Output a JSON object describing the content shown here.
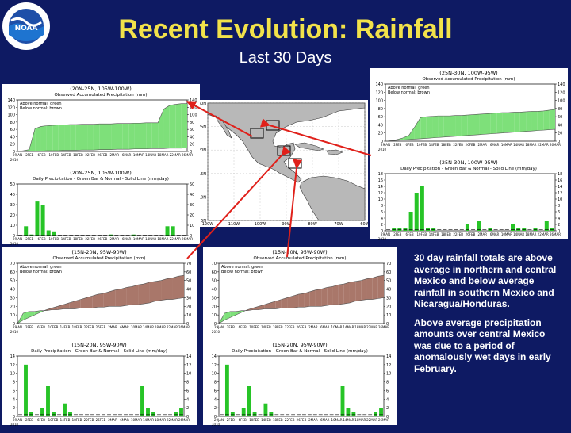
{
  "header": {
    "title": "Recent Evolution: Rainfall",
    "subtitle": "Last 30 Days",
    "logo_text": "NOAA"
  },
  "colors": {
    "background": "#0e1a63",
    "title": "#f2e24a",
    "above": "#7ee07a",
    "below": "#a9776a",
    "bar": "#27c427",
    "arrow": "#e0201a"
  },
  "notes": [
    "30 day rainfall totals are above average in northern and central Mexico and below average rainfall in southern Mexico and Nicaragua/Honduras.",
    "Above average precipitation amounts over central Mexico was due to a period of anomalously wet days in early February."
  ],
  "date_labels": [
    "29JAN",
    "2FEB",
    "6FEB",
    "10FEB",
    "14FEB",
    "18FEB",
    "22FEB",
    "26FEB",
    "2MAR",
    "6MAR",
    "10MAR",
    "14MAR",
    "18MAR",
    "22MAR",
    "26MAR"
  ],
  "year_label": "2010",
  "map": {
    "lon_labels": [
      "120W",
      "110W",
      "100W",
      "90W",
      "80W",
      "70W",
      "60W"
    ],
    "lat_labels": [
      "30N",
      "25N",
      "20N",
      "15N",
      "10N",
      "5N"
    ]
  },
  "chart_data": [
    {
      "type": "area",
      "region": "(20N-25N, 105W-100W)",
      "title": "Observed Accumulated Precipitation (mm)",
      "legend": [
        "Above normal: green",
        "Below normal: brown"
      ],
      "ylim": [
        0,
        140
      ],
      "yticks": [
        0,
        20,
        40,
        60,
        80,
        100,
        120,
        140
      ],
      "observed": [
        0,
        2,
        5,
        62,
        68,
        70,
        71,
        72,
        72,
        73,
        73,
        74,
        74,
        74,
        75,
        75,
        75,
        76,
        76,
        76,
        77,
        77,
        78,
        78,
        78,
        115,
        125,
        128,
        130,
        130
      ],
      "normal": [
        0,
        0,
        1,
        1,
        1,
        2,
        2,
        2,
        3,
        3,
        3,
        4,
        4,
        4,
        5,
        5,
        5,
        6,
        6,
        6,
        7,
        7,
        7,
        8,
        8,
        8,
        9,
        9,
        9,
        10
      ]
    },
    {
      "type": "bar",
      "region": "(20N-25N, 105W-100W)",
      "title": "Daily Precipitation - Green Bar & Normal - Solid Line (mm/day)",
      "ylim": [
        0,
        50
      ],
      "yticks": [
        0,
        10,
        20,
        30,
        40,
        50
      ],
      "values": [
        0,
        9,
        1,
        33,
        30,
        5,
        4,
        0,
        0,
        0,
        0,
        0,
        0,
        0,
        0,
        0,
        1,
        0,
        0,
        0,
        1,
        0,
        0,
        0,
        0,
        0,
        9,
        9,
        0,
        0
      ]
    },
    {
      "type": "area",
      "region": "(25N-30N, 100W-95W)",
      "title": "Observed Accumulated Precipitation (mm)",
      "legend": [
        "Above normal: green",
        "Below normal: brown"
      ],
      "ylim": [
        0,
        140
      ],
      "yticks": [
        0,
        20,
        40,
        60,
        80,
        100,
        120,
        140
      ],
      "observed": [
        0,
        1,
        4,
        8,
        14,
        35,
        58,
        60,
        61,
        62,
        62,
        62,
        63,
        63,
        64,
        65,
        66,
        67,
        68,
        69,
        70,
        70,
        71,
        71,
        72,
        73,
        73,
        74,
        76,
        78
      ],
      "normal": [
        0,
        1,
        2,
        3,
        4,
        5,
        6,
        7,
        8,
        9,
        10,
        11,
        12,
        13,
        14,
        15,
        16,
        17,
        18,
        19,
        20,
        21,
        22,
        23,
        24,
        25,
        26,
        27,
        28,
        29
      ]
    },
    {
      "type": "bar",
      "region": "(25N-30N, 100W-95W)",
      "title": "Daily Precipitation - Green Bar & Normal - Solid Line (mm/day)",
      "ylim": [
        0,
        18
      ],
      "yticks": [
        0,
        2,
        4,
        6,
        8,
        10,
        12,
        14,
        16,
        18
      ],
      "values": [
        0,
        1,
        1,
        1,
        6,
        12,
        14,
        1,
        1,
        0,
        0,
        0,
        0,
        0,
        2,
        0,
        3,
        0,
        1,
        0,
        0,
        0,
        2,
        1,
        1,
        0,
        1,
        0,
        3,
        1
      ]
    },
    {
      "type": "area",
      "region": "(15N-20N, 95W-90W)",
      "title": "Observed Accumulated Precipitation (mm)",
      "legend": [
        "Above normal: green",
        "Below normal: brown"
      ],
      "ylim": [
        0,
        70
      ],
      "yticks": [
        0,
        10,
        20,
        30,
        40,
        50,
        60,
        70
      ],
      "observed": [
        0,
        12,
        14,
        14,
        15,
        15,
        16,
        16,
        17,
        17,
        17,
        18,
        18,
        18,
        19,
        19,
        20,
        20,
        20,
        21,
        22,
        22,
        23,
        24,
        26,
        27,
        28,
        28,
        29,
        30
      ],
      "normal": [
        0,
        4,
        7,
        10,
        13,
        16,
        18,
        20,
        22,
        24,
        26,
        28,
        30,
        32,
        34,
        35,
        37,
        39,
        40,
        42,
        43,
        45,
        46,
        48,
        49,
        50,
        52,
        53,
        55,
        56
      ]
    },
    {
      "type": "bar",
      "region": "(15N-20N, 95W-90W)",
      "title": "Daily Precipitation - Green Bar & Normal - Solid Line (mm/day)",
      "ylim": [
        0,
        14
      ],
      "yticks": [
        0,
        2,
        4,
        6,
        8,
        10,
        12,
        14
      ],
      "values": [
        0,
        12,
        1,
        0,
        2,
        7,
        1,
        0,
        3,
        1,
        0,
        0,
        0,
        0,
        0,
        0,
        0,
        0,
        0,
        0,
        0,
        0,
        7,
        2,
        1,
        0,
        0,
        0,
        1,
        2
      ]
    },
    {
      "type": "area",
      "region": "(15N-20N, 95W-90W)",
      "title": "Observed Accumulated Precipitation (mm)",
      "legend": [
        "Above normal: green",
        "Below normal: brown"
      ],
      "ylim": [
        0,
        70
      ],
      "yticks": [
        0,
        10,
        20,
        30,
        40,
        50,
        60,
        70
      ],
      "observed": [
        0,
        12,
        14,
        14,
        15,
        15,
        16,
        16,
        17,
        17,
        17,
        18,
        18,
        18,
        19,
        19,
        20,
        20,
        20,
        21,
        22,
        22,
        23,
        24,
        26,
        27,
        28,
        28,
        29,
        30
      ],
      "normal": [
        0,
        4,
        7,
        10,
        13,
        16,
        18,
        20,
        22,
        24,
        26,
        28,
        30,
        32,
        34,
        35,
        37,
        39,
        40,
        42,
        43,
        45,
        46,
        48,
        49,
        50,
        52,
        53,
        55,
        56
      ]
    },
    {
      "type": "bar",
      "region": "(15N-20N, 95W-90W)",
      "title": "Daily Precipitation - Green Bar & Normal - Solid Line (mm/day)",
      "ylim": [
        0,
        14
      ],
      "yticks": [
        0,
        2,
        4,
        6,
        8,
        10,
        12,
        14
      ],
      "values": [
        0,
        12,
        1,
        0,
        2,
        7,
        1,
        0,
        3,
        1,
        0,
        0,
        0,
        0,
        0,
        0,
        0,
        0,
        0,
        0,
        0,
        0,
        7,
        2,
        1,
        0,
        0,
        0,
        1,
        2
      ]
    }
  ]
}
